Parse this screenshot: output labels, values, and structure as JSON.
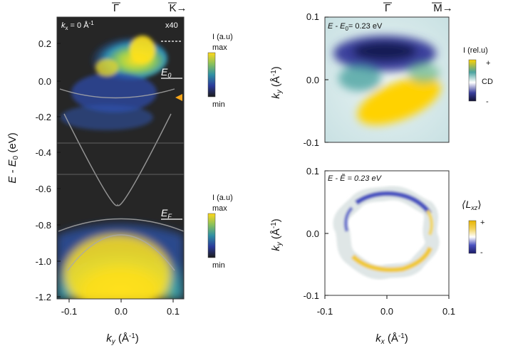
{
  "figure": {
    "left_panel": {
      "top_labels": {
        "gamma": "Γ",
        "k": "K→"
      },
      "kx_text": "k",
      "kx_sub": "x",
      "kx_rest": " = 0 Å",
      "kx_sup": "-1",
      "zoom_text": "x40",
      "e0_label": "E",
      "e0_sub": "0",
      "ef_label": "E",
      "ef_sub": "F",
      "y_axis_label": "E - E",
      "y_axis_sub": "0",
      "y_axis_unit": " (eV)",
      "x_axis_label": "k",
      "x_axis_sub": "y",
      "x_axis_unit": " (Å",
      "x_axis_sup": "-1",
      "x_axis_close": ")",
      "colorbar_top": {
        "title": "I (a.u)",
        "max": "max",
        "min": "min"
      },
      "colorbar_bottom": {
        "title": "I (a.u)",
        "max": "max",
        "min": "min"
      }
    },
    "right_top": {
      "top_labels": {
        "gamma": "Γ",
        "m": "M→"
      },
      "energy_text": "E - E",
      "energy_sub": "0",
      "energy_rest": "= 0.23 eV",
      "colorbar": {
        "title": "I (rel.u)",
        "plus": "+",
        "minus": "-",
        "cd": "CD"
      },
      "y_axis_label": "k",
      "y_axis_sub": "y",
      "y_axis_unit": " (Å",
      "y_axis_sup": "-1",
      "y_axis_close": ")"
    },
    "right_bottom": {
      "energy_text": "E - Ẽ = 0.23 eV",
      "colorbar": {
        "title": "⟨L",
        "title_sub": "xz",
        "title_close": "⟩",
        "plus": "+",
        "minus": "-"
      },
      "y_axis_label": "k",
      "y_axis_sub": "y",
      "y_axis_unit": " (Å",
      "y_axis_sup": "-1",
      "y_axis_close": ")",
      "x_axis_label": "k",
      "x_axis_sub": "x",
      "x_axis_unit": " (Å",
      "x_axis_sup": "-1",
      "x_axis_close": ")"
    }
  },
  "chart_data": [
    {
      "type": "heatmap",
      "xlabel": "ky (Å-1)",
      "ylabel": "E - E0 (eV)",
      "xlim": [
        -0.12,
        0.12
      ],
      "ylim": [
        -1.2,
        0.3
      ],
      "x_ticks": [
        "-0.1",
        "0.0",
        "0.1"
      ],
      "y_ticks": [
        "0.2",
        "0.0",
        "-0.2",
        "-0.4",
        "-0.6",
        "-0.8",
        "-1.0",
        "-1.2"
      ]
    },
    {
      "type": "heatmap",
      "ylabel": "ky (Å-1)",
      "xlim": [
        -0.1,
        0.1
      ],
      "ylim": [
        -0.1,
        0.1
      ],
      "y_ticks": [
        "0.1",
        "0.0",
        "-0.1"
      ]
    },
    {
      "type": "heatmap",
      "xlabel": "kx (Å-1)",
      "ylabel": "ky (Å-1)",
      "xlim": [
        -0.1,
        0.1
      ],
      "ylim": [
        -0.1,
        0.1
      ],
      "x_ticks": [
        "-0.1",
        "0.0",
        "0.1"
      ],
      "y_ticks": [
        "0.1",
        "0.0",
        "-0.1"
      ]
    }
  ]
}
